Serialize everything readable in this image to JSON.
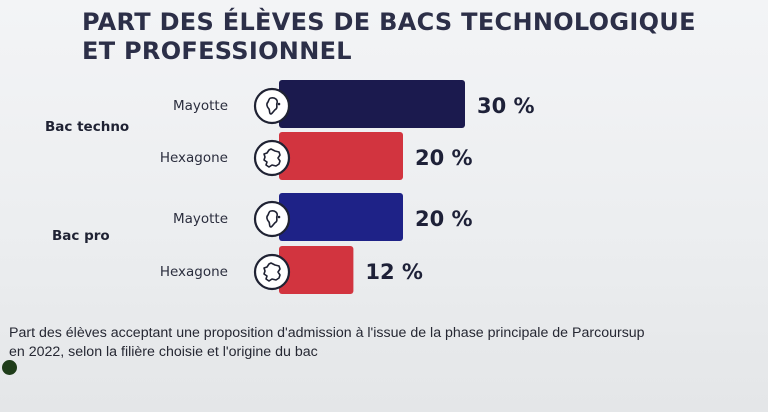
{
  "chart_data": {
    "type": "bar",
    "orientation": "horizontal",
    "title": "PART DES ÉLÈVES DE BACS TECHNOLOGIQUE ET PROFESSIONNEL",
    "groups": [
      {
        "label": "Bac techno",
        "bars": [
          {
            "category": "Mayotte",
            "value": 30,
            "label": "30 %",
            "icon": "mayotte-map-icon",
            "color": "#1b1a4e"
          },
          {
            "category": "Hexagone",
            "value": 20,
            "label": "20 %",
            "icon": "france-map-icon",
            "color": "#d2343f"
          }
        ]
      },
      {
        "label": "Bac pro",
        "bars": [
          {
            "category": "Mayotte",
            "value": 20,
            "label": "20 %",
            "icon": "mayotte-map-icon",
            "color": "#1e2287"
          },
          {
            "category": "Hexagone",
            "value": 12,
            "label": "12 %",
            "icon": "france-map-icon",
            "color": "#d2343f"
          }
        ]
      }
    ],
    "xlim": [
      0,
      30
    ],
    "grid": false,
    "legend": "none"
  },
  "caption": "Part des élèves acceptant une proposition d'admission à l'issue de la phase principale de Parcoursup en 2022, selon la filière choisie et l'origine du bac"
}
